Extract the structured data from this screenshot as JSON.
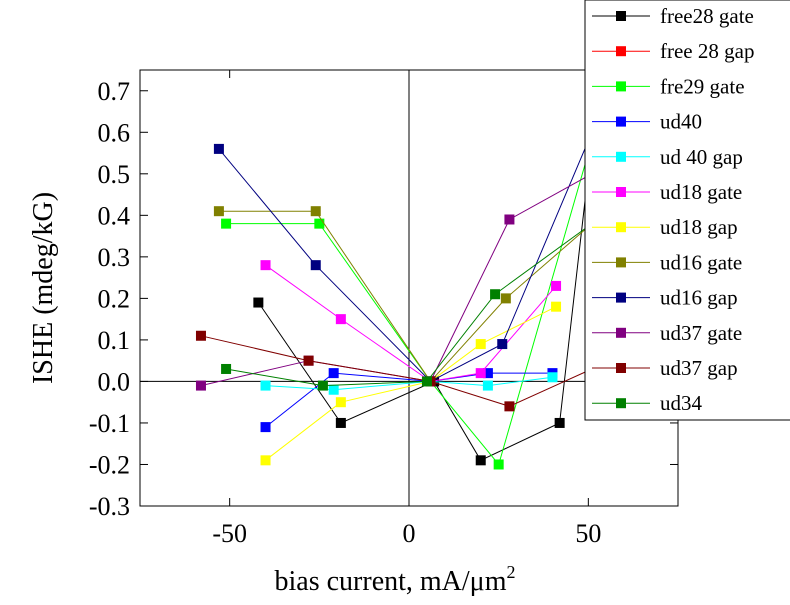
{
  "chart_data": {
    "type": "scatter",
    "xlabel": "bias current, mA/μm",
    "xlabel_sup": "2",
    "ylabel": "ISHE (mdeg/kG)",
    "xlim": [
      -75,
      75
    ],
    "ylim": [
      -0.3,
      0.75
    ],
    "xticks": [
      -50,
      0,
      50
    ],
    "yticks": [
      -0.3,
      -0.2,
      -0.1,
      0.0,
      0.1,
      0.2,
      0.3,
      0.4,
      0.5,
      0.6,
      0.7
    ],
    "ytick_labels": [
      "-0.3",
      "-0.2",
      "-0.1",
      "0.0",
      "0.1",
      "0.2",
      "0.3",
      "0.4",
      "0.5",
      "0.6",
      "0.7"
    ],
    "grid": false,
    "zero_lines": true,
    "legend_position": "top-right",
    "series": [
      {
        "name": "free28 gate",
        "color": "#000000",
        "points": [
          [
            -42,
            0.19
          ],
          [
            -19,
            -0.1
          ],
          [
            7,
            0.0
          ],
          [
            20,
            -0.19
          ],
          [
            42,
            -0.1
          ],
          [
            51,
            0.58
          ]
        ]
      },
      {
        "name": "free 28 gap",
        "color": "#ff0000",
        "points": []
      },
      {
        "name": "fre29 gate",
        "color": "#00ff00",
        "points": [
          [
            -51,
            0.38
          ],
          [
            -25,
            0.38
          ],
          [
            6,
            0.0
          ],
          [
            25,
            -0.2
          ],
          [
            51,
            0.58
          ]
        ]
      },
      {
        "name": "ud40",
        "color": "#0000ff",
        "points": [
          [
            -40,
            -0.11
          ],
          [
            -21,
            0.02
          ],
          [
            6,
            0.0
          ],
          [
            22,
            0.02
          ],
          [
            40,
            0.02
          ]
        ]
      },
      {
        "name": "ud 40 gap",
        "color": "#00ffff",
        "points": [
          [
            -40,
            -0.01
          ],
          [
            -21,
            -0.02
          ],
          [
            6,
            0.0
          ],
          [
            22,
            -0.01
          ],
          [
            40,
            0.01
          ]
        ]
      },
      {
        "name": "ud18 gate",
        "color": "#ff00ff",
        "points": [
          [
            -40,
            0.28
          ],
          [
            -19,
            0.15
          ],
          [
            6,
            0.0
          ],
          [
            20,
            0.02
          ],
          [
            41,
            0.23
          ]
        ]
      },
      {
        "name": "ud18 gap",
        "color": "#ffff00",
        "points": [
          [
            -40,
            -0.19
          ],
          [
            -19,
            -0.05
          ],
          [
            6,
            0.0
          ],
          [
            20,
            0.09
          ],
          [
            41,
            0.18
          ]
        ]
      },
      {
        "name": "ud16 gate",
        "color": "#808000",
        "points": [
          [
            -53,
            0.41
          ],
          [
            -26,
            0.41
          ],
          [
            6,
            0.0
          ],
          [
            27,
            0.2
          ],
          [
            51,
            0.38
          ]
        ]
      },
      {
        "name": "ud16 gap",
        "color": "#000080",
        "points": [
          [
            -53,
            0.56
          ],
          [
            -26,
            0.28
          ],
          [
            6,
            0.0
          ],
          [
            26,
            0.09
          ],
          [
            51,
            0.6
          ]
        ]
      },
      {
        "name": "ud37 gate",
        "color": "#800080",
        "points": [
          [
            -58,
            -0.01
          ],
          [
            -28,
            0.05
          ],
          [
            6,
            0.0
          ],
          [
            28,
            0.39
          ],
          [
            51,
            0.5
          ]
        ]
      },
      {
        "name": "ud37 gap",
        "color": "#800000",
        "points": [
          [
            -58,
            0.11
          ],
          [
            -28,
            0.05
          ],
          [
            6,
            0.0
          ],
          [
            28,
            -0.06
          ],
          [
            51,
            0.03
          ]
        ]
      },
      {
        "name": "ud34",
        "color": "#008000",
        "points": [
          [
            -51,
            0.03
          ],
          [
            -24,
            -0.01
          ],
          [
            5,
            0.0
          ],
          [
            24,
            0.21
          ],
          [
            51,
            0.38
          ]
        ]
      }
    ]
  }
}
